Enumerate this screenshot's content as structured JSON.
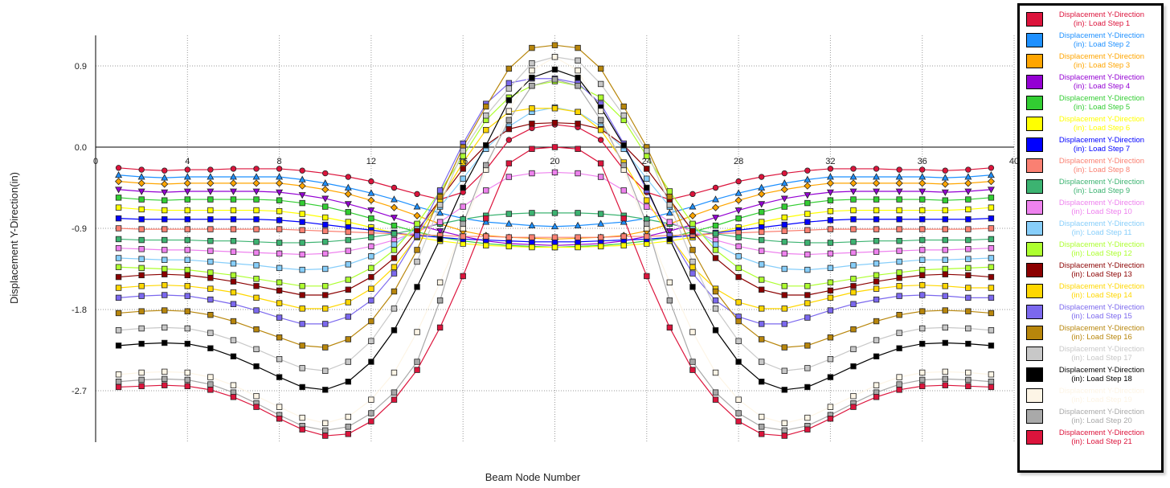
{
  "chart_data": {
    "type": "line",
    "title": "",
    "xlabel": "Beam Node Number",
    "ylabel": "Displacement Y-Direction(in)",
    "xlim": [
      0,
      40
    ],
    "ylim": [
      -3.3,
      1.25
    ],
    "x_ticks": [
      "0",
      "4",
      "8",
      "12",
      "16",
      "20",
      "24",
      "28",
      "32",
      "36",
      "40"
    ],
    "y_ticks": [
      "0.9",
      "0.0",
      "-0.9",
      "-1.8",
      "-2.7"
    ],
    "grid": true,
    "legend_position": "right",
    "x": [
      1,
      2,
      3,
      4,
      5,
      6,
      7,
      8,
      9,
      10,
      11,
      12,
      13,
      14,
      15,
      16,
      17,
      18,
      19,
      20,
      21,
      22,
      23,
      24,
      25,
      26,
      27,
      28,
      29,
      30,
      31,
      32,
      33,
      34,
      35,
      36,
      37,
      38,
      39
    ],
    "series": [
      {
        "name": "Displacement Y-Direction (in): Load Step 1",
        "color": "#DC143C",
        "marker": "circle",
        "values": [
          -0.23,
          -0.25,
          -0.26,
          -0.25,
          -0.25,
          -0.24,
          -0.24,
          -0.24,
          -0.26,
          -0.29,
          -0.33,
          -0.38,
          -0.45,
          -0.52,
          -0.58,
          -0.5,
          -0.25,
          0.08,
          0.21,
          0.25,
          0.22,
          0.08,
          -0.25,
          -0.5,
          -0.58,
          -0.52,
          -0.45,
          -0.38,
          -0.33,
          -0.29,
          -0.26,
          -0.24,
          -0.24,
          -0.24,
          -0.25,
          -0.25,
          -0.26,
          -0.25,
          -0.23
        ]
      },
      {
        "name": "Displacement Y-Direction (in): Load Step 2",
        "color": "#1E90FF",
        "marker": "triangle",
        "values": [
          -0.31,
          -0.33,
          -0.34,
          -0.33,
          -0.33,
          -0.33,
          -0.33,
          -0.33,
          -0.36,
          -0.4,
          -0.45,
          -0.51,
          -0.58,
          -0.66,
          -0.73,
          -0.79,
          -0.83,
          -0.85,
          -0.87,
          -0.88,
          -0.87,
          -0.85,
          -0.83,
          -0.79,
          -0.73,
          -0.66,
          -0.58,
          -0.51,
          -0.45,
          -0.4,
          -0.36,
          -0.33,
          -0.33,
          -0.33,
          -0.33,
          -0.33,
          -0.34,
          -0.33,
          -0.31
        ]
      },
      {
        "name": "Displacement Y-Direction (in): Load Step 3",
        "color": "#FFA500",
        "marker": "diamond",
        "values": [
          -0.38,
          -0.4,
          -0.41,
          -0.4,
          -0.4,
          -0.4,
          -0.4,
          -0.4,
          -0.43,
          -0.47,
          -0.52,
          -0.59,
          -0.67,
          -0.76,
          -0.85,
          -0.93,
          -0.98,
          -1.0,
          -1.01,
          -1.02,
          -1.01,
          -1.0,
          -0.98,
          -0.93,
          -0.85,
          -0.76,
          -0.67,
          -0.59,
          -0.52,
          -0.47,
          -0.43,
          -0.4,
          -0.4,
          -0.4,
          -0.4,
          -0.4,
          -0.41,
          -0.4,
          -0.38
        ]
      },
      {
        "name": "Displacement Y-Direction (in): Load Step 4",
        "color": "#9400D3",
        "marker": "triangle-down",
        "values": [
          -0.47,
          -0.49,
          -0.5,
          -0.49,
          -0.49,
          -0.49,
          -0.49,
          -0.5,
          -0.53,
          -0.57,
          -0.63,
          -0.7,
          -0.78,
          -0.86,
          -0.93,
          -0.99,
          -1.04,
          -1.07,
          -1.08,
          -1.09,
          -1.08,
          -1.07,
          -1.04,
          -0.99,
          -0.93,
          -0.86,
          -0.78,
          -0.7,
          -0.63,
          -0.57,
          -0.53,
          -0.5,
          -0.49,
          -0.49,
          -0.49,
          -0.49,
          -0.5,
          -0.49,
          -0.47
        ]
      },
      {
        "name": "Displacement Y-Direction (in): Load Step 5",
        "color": "#32CD32",
        "marker": "square",
        "values": [
          -0.56,
          -0.58,
          -0.59,
          -0.58,
          -0.58,
          -0.58,
          -0.58,
          -0.59,
          -0.62,
          -0.66,
          -0.72,
          -0.79,
          -0.87,
          -0.94,
          -1.0,
          -1.04,
          -1.07,
          -1.09,
          -1.1,
          -1.11,
          -1.1,
          -1.09,
          -1.07,
          -1.04,
          -1.0,
          -0.94,
          -0.87,
          -0.79,
          -0.72,
          -0.66,
          -0.62,
          -0.59,
          -0.58,
          -0.58,
          -0.58,
          -0.58,
          -0.59,
          -0.58,
          -0.56
        ]
      },
      {
        "name": "Displacement Y-Direction (in): Load Step 6",
        "color": "#FFFF00",
        "marker": "square",
        "values": [
          -0.67,
          -0.69,
          -0.7,
          -0.7,
          -0.7,
          -0.7,
          -0.7,
          -0.71,
          -0.74,
          -0.78,
          -0.83,
          -0.89,
          -0.95,
          -1.0,
          -1.04,
          -1.07,
          -1.09,
          -1.1,
          -1.11,
          -1.11,
          -1.11,
          -1.1,
          -1.09,
          -1.07,
          -1.04,
          -1.0,
          -0.95,
          -0.89,
          -0.83,
          -0.78,
          -0.74,
          -0.71,
          -0.7,
          -0.7,
          -0.7,
          -0.7,
          -0.7,
          -0.69,
          -0.67
        ]
      },
      {
        "name": "Displacement Y-Direction (in): Load Step 7",
        "color": "#0000FF",
        "marker": "square",
        "values": [
          -0.79,
          -0.8,
          -0.8,
          -0.8,
          -0.8,
          -0.8,
          -0.8,
          -0.81,
          -0.83,
          -0.86,
          -0.89,
          -0.92,
          -0.95,
          -0.98,
          -1.0,
          -1.02,
          -1.03,
          -1.04,
          -1.05,
          -1.05,
          -1.05,
          -1.04,
          -1.03,
          -1.02,
          -1.0,
          -0.98,
          -0.95,
          -0.92,
          -0.89,
          -0.86,
          -0.83,
          -0.81,
          -0.8,
          -0.8,
          -0.8,
          -0.8,
          -0.8,
          -0.8,
          -0.79
        ]
      },
      {
        "name": "Displacement Y-Direction (in): Load Step 8",
        "color": "#FA8072",
        "marker": "square",
        "values": [
          -0.9,
          -0.91,
          -0.91,
          -0.91,
          -0.91,
          -0.91,
          -0.91,
          -0.91,
          -0.92,
          -0.93,
          -0.94,
          -0.95,
          -0.96,
          -0.97,
          -0.98,
          -0.99,
          -0.99,
          -1.0,
          -1.0,
          -1.0,
          -1.0,
          -1.0,
          -0.99,
          -0.99,
          -0.98,
          -0.97,
          -0.96,
          -0.95,
          -0.94,
          -0.93,
          -0.92,
          -0.91,
          -0.91,
          -0.91,
          -0.91,
          -0.91,
          -0.91,
          -0.91,
          -0.9
        ]
      },
      {
        "name": "Displacement Y-Direction (in): Load Step 9",
        "color": "#3CB371",
        "marker": "square",
        "values": [
          -1.02,
          -1.03,
          -1.03,
          -1.03,
          -1.04,
          -1.04,
          -1.05,
          -1.06,
          -1.06,
          -1.05,
          -1.03,
          -1.0,
          -0.96,
          -0.91,
          -0.85,
          -0.8,
          -0.76,
          -0.74,
          -0.73,
          -0.73,
          -0.73,
          -0.74,
          -0.76,
          -0.8,
          -0.85,
          -0.91,
          -0.96,
          -1.0,
          -1.03,
          -1.05,
          -1.06,
          -1.06,
          -1.05,
          -1.04,
          -1.04,
          -1.03,
          -1.03,
          -1.03,
          -1.02
        ]
      },
      {
        "name": "Displacement Y-Direction (in): Load Step 10",
        "color": "#EE82EE",
        "marker": "square",
        "values": [
          -1.12,
          -1.13,
          -1.14,
          -1.14,
          -1.15,
          -1.16,
          -1.17,
          -1.18,
          -1.19,
          -1.18,
          -1.15,
          -1.1,
          -1.03,
          -0.94,
          -0.83,
          -0.66,
          -0.48,
          -0.33,
          -0.29,
          -0.28,
          -0.29,
          -0.33,
          -0.48,
          -0.66,
          -0.83,
          -0.94,
          -1.03,
          -1.1,
          -1.15,
          -1.18,
          -1.19,
          -1.18,
          -1.17,
          -1.16,
          -1.15,
          -1.14,
          -1.14,
          -1.13,
          -1.12
        ]
      },
      {
        "name": "Displacement Y-Direction (in): Load Step 11",
        "color": "#87CEFA",
        "marker": "square",
        "values": [
          -1.23,
          -1.24,
          -1.25,
          -1.25,
          -1.27,
          -1.29,
          -1.31,
          -1.34,
          -1.36,
          -1.35,
          -1.3,
          -1.21,
          -1.08,
          -0.9,
          -0.66,
          -0.35,
          -0.02,
          0.23,
          0.39,
          0.44,
          0.39,
          0.23,
          -0.02,
          -0.35,
          -0.66,
          -0.9,
          -1.08,
          -1.21,
          -1.3,
          -1.35,
          -1.36,
          -1.34,
          -1.31,
          -1.29,
          -1.27,
          -1.25,
          -1.25,
          -1.24,
          -1.23
        ]
      },
      {
        "name": "Displacement Y-Direction (in): Load Step 12",
        "color": "#ADFF2F",
        "marker": "square",
        "values": [
          -1.33,
          -1.34,
          -1.35,
          -1.36,
          -1.39,
          -1.42,
          -1.46,
          -1.5,
          -1.54,
          -1.54,
          -1.47,
          -1.34,
          -1.14,
          -0.85,
          -0.49,
          -0.1,
          0.3,
          0.55,
          0.68,
          0.73,
          0.68,
          0.55,
          0.3,
          -0.1,
          -0.49,
          -0.85,
          -1.14,
          -1.34,
          -1.47,
          -1.54,
          -1.54,
          -1.5,
          -1.46,
          -1.42,
          -1.39,
          -1.36,
          -1.35,
          -1.34,
          -1.33
        ]
      },
      {
        "name": "Displacement Y-Direction (in): Load Step 13",
        "color": "#8B0000",
        "marker": "square",
        "values": [
          -1.44,
          -1.42,
          -1.41,
          -1.42,
          -1.45,
          -1.49,
          -1.54,
          -1.59,
          -1.64,
          -1.64,
          -1.58,
          -1.44,
          -1.23,
          -0.93,
          -0.58,
          -0.24,
          0.02,
          0.2,
          0.26,
          0.27,
          0.26,
          0.2,
          0.02,
          -0.24,
          -0.58,
          -0.93,
          -1.23,
          -1.44,
          -1.58,
          -1.64,
          -1.64,
          -1.59,
          -1.54,
          -1.49,
          -1.45,
          -1.42,
          -1.41,
          -1.42,
          -1.44
        ]
      },
      {
        "name": "Displacement Y-Direction (in): Load Step 14",
        "color": "#FFD700",
        "marker": "square",
        "values": [
          -1.56,
          -1.54,
          -1.53,
          -1.54,
          -1.57,
          -1.61,
          -1.67,
          -1.73,
          -1.79,
          -1.79,
          -1.72,
          -1.57,
          -1.33,
          -0.99,
          -0.59,
          -0.17,
          0.19,
          0.39,
          0.43,
          0.43,
          0.39,
          0.19,
          -0.17,
          -0.59,
          -0.99,
          -1.33,
          -1.57,
          -1.72,
          -1.79,
          -1.79,
          -1.73,
          -1.67,
          -1.61,
          -1.57,
          -1.54,
          -1.53,
          -1.54,
          -1.56,
          -1.56
        ]
      },
      {
        "name": "Displacement Y-Direction (in): Load Step 15",
        "color": "#7B68EE",
        "marker": "square",
        "values": [
          -1.67,
          -1.65,
          -1.64,
          -1.65,
          -1.69,
          -1.74,
          -1.81,
          -1.89,
          -1.96,
          -1.96,
          -1.88,
          -1.7,
          -1.4,
          -0.98,
          -0.48,
          0.04,
          0.48,
          0.71,
          0.76,
          0.76,
          0.71,
          0.48,
          0.04,
          -0.48,
          -0.98,
          -1.4,
          -1.7,
          -1.88,
          -1.96,
          -1.96,
          -1.89,
          -1.81,
          -1.74,
          -1.69,
          -1.65,
          -1.64,
          -1.65,
          -1.67,
          -1.67
        ]
      },
      {
        "name": "Displacement Y-Direction (in): Load Step 16",
        "color": "#B8860B",
        "marker": "square",
        "values": [
          -1.84,
          -1.82,
          -1.81,
          -1.82,
          -1.86,
          -1.93,
          -2.02,
          -2.11,
          -2.2,
          -2.22,
          -2.13,
          -1.93,
          -1.6,
          -1.14,
          -0.55,
          0.0,
          0.45,
          0.87,
          1.1,
          1.13,
          1.1,
          0.87,
          0.45,
          0.0,
          -0.55,
          -1.14,
          -1.6,
          -1.93,
          -2.13,
          -2.22,
          -2.2,
          -2.11,
          -2.02,
          -1.93,
          -1.86,
          -1.82,
          -1.81,
          -1.82,
          -1.84
        ]
      },
      {
        "name": "Displacement Y-Direction (in): Load Step 17",
        "color": "#C8C8C8",
        "marker": "square",
        "values": [
          -2.03,
          -2.01,
          -2.0,
          -2.01,
          -2.06,
          -2.14,
          -2.24,
          -2.35,
          -2.45,
          -2.48,
          -2.38,
          -2.15,
          -1.79,
          -1.27,
          -0.64,
          -0.04,
          0.35,
          0.65,
          0.93,
          1.0,
          0.96,
          0.7,
          0.35,
          -0.04,
          -0.64,
          -1.27,
          -1.79,
          -2.15,
          -2.38,
          -2.48,
          -2.45,
          -2.35,
          -2.24,
          -2.14,
          -2.06,
          -2.01,
          -2.0,
          -2.01,
          -2.03
        ]
      },
      {
        "name": "Displacement Y-Direction (in): Load Step 18",
        "color": "#000000",
        "marker": "square",
        "values": [
          -2.2,
          -2.18,
          -2.17,
          -2.18,
          -2.23,
          -2.32,
          -2.43,
          -2.55,
          -2.66,
          -2.69,
          -2.6,
          -2.38,
          -2.03,
          -1.55,
          -1.02,
          -0.45,
          0.02,
          0.52,
          0.77,
          0.86,
          0.77,
          0.44,
          0.02,
          -0.45,
          -1.02,
          -1.55,
          -2.03,
          -2.38,
          -2.6,
          -2.69,
          -2.66,
          -2.55,
          -2.43,
          -2.32,
          -2.23,
          -2.18,
          -2.17,
          -2.18,
          -2.2
        ]
      },
      {
        "name": "Displacement Y-Direction (in): Load Step 19",
        "color": "#FDF5E6",
        "marker": "square",
        "values": [
          -2.52,
          -2.5,
          -2.49,
          -2.5,
          -2.55,
          -2.64,
          -2.76,
          -2.88,
          -3.0,
          -3.06,
          -2.99,
          -2.8,
          -2.5,
          -2.05,
          -1.5,
          -0.9,
          -0.25,
          0.4,
          0.85,
          1.0,
          0.85,
          0.4,
          -0.25,
          -0.9,
          -1.5,
          -2.05,
          -2.5,
          -2.8,
          -2.99,
          -3.06,
          -3.0,
          -2.88,
          -2.76,
          -2.64,
          -2.55,
          -2.5,
          -2.49,
          -2.5,
          -2.52
        ]
      },
      {
        "name": "Displacement Y-Direction (in): Load Step 20",
        "color": "#A9A9A9",
        "marker": "square",
        "values": [
          -2.6,
          -2.58,
          -2.57,
          -2.58,
          -2.63,
          -2.72,
          -2.84,
          -2.97,
          -3.09,
          -3.14,
          -3.1,
          -2.95,
          -2.72,
          -2.38,
          -1.7,
          -0.85,
          -0.2,
          0.3,
          0.68,
          0.75,
          0.68,
          0.3,
          -0.2,
          -0.85,
          -1.7,
          -2.38,
          -2.72,
          -2.95,
          -3.1,
          -3.14,
          -3.09,
          -2.97,
          -2.84,
          -2.72,
          -2.63,
          -2.58,
          -2.57,
          -2.58,
          -2.6
        ]
      },
      {
        "name": "Displacement Y-Direction (in): Load Step 21",
        "color": "#DC143C",
        "marker": "square",
        "values": [
          -2.66,
          -2.65,
          -2.64,
          -2.65,
          -2.69,
          -2.77,
          -2.88,
          -3.01,
          -3.13,
          -3.2,
          -3.18,
          -3.04,
          -2.8,
          -2.47,
          -2.0,
          -1.43,
          -0.79,
          -0.18,
          -0.02,
          0.0,
          -0.02,
          -0.18,
          -0.79,
          -1.43,
          -2.0,
          -2.47,
          -2.8,
          -3.04,
          -3.18,
          -3.2,
          -3.13,
          -3.01,
          -2.88,
          -2.77,
          -2.69,
          -2.65,
          -2.64,
          -2.65,
          -2.66
        ]
      }
    ]
  }
}
